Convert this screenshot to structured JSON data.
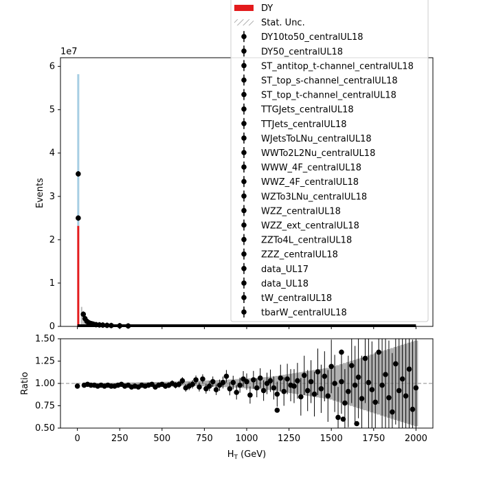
{
  "chart_data": [
    {
      "type": "bar",
      "panel": "main",
      "ylabel": "Events",
      "offset_text": "1e7",
      "ylim": [
        0,
        6.2
      ],
      "xlim": [
        -100,
        2100
      ],
      "ytick_values": [
        0,
        1,
        2,
        3,
        4,
        5,
        6
      ],
      "ytick_labels": [
        "0",
        "1",
        "2",
        "3",
        "4",
        "5",
        "6"
      ],
      "stack_spike_x": 5,
      "stack_dy_top": 2.32,
      "stack_total_top": 5.82,
      "mc_colors": {
        "dy": "#e31a1c",
        "other": "#a6cee3"
      },
      "points": {
        "x": [
          5,
          5,
          35,
          45,
          55,
          65,
          75,
          85,
          95,
          110,
          130,
          150,
          175,
          200,
          250,
          300
        ],
        "y": [
          3.52,
          2.5,
          0.28,
          0.18,
          0.12,
          0.09,
          0.07,
          0.06,
          0.05,
          0.04,
          0.035,
          0.03,
          0.025,
          0.02,
          0.015,
          0.01
        ]
      },
      "legend": {
        "placement": "upper-right",
        "entries": [
          {
            "label": "DY",
            "kind": "patch",
            "color": "#e31a1c"
          },
          {
            "label": "Stat. Unc.",
            "kind": "hatch"
          },
          {
            "label": "DY10to50_centralUL18",
            "kind": "marker"
          },
          {
            "label": "DY50_centralUL18",
            "kind": "marker"
          },
          {
            "label": "ST_antitop_t-channel_centralUL18",
            "kind": "marker"
          },
          {
            "label": "ST_top_s-channel_centralUL18",
            "kind": "marker"
          },
          {
            "label": "ST_top_t-channel_centralUL18",
            "kind": "marker"
          },
          {
            "label": "TTGJets_centralUL18",
            "kind": "marker"
          },
          {
            "label": "TTJets_centralUL18",
            "kind": "marker"
          },
          {
            "label": "WJetsToLNu_centralUL18",
            "kind": "marker"
          },
          {
            "label": "WWTo2L2Nu_centralUL18",
            "kind": "marker"
          },
          {
            "label": "WWW_4F_centralUL18",
            "kind": "marker"
          },
          {
            "label": "WWZ_4F_centralUL18",
            "kind": "marker"
          },
          {
            "label": "WZTo3LNu_centralUL18",
            "kind": "marker"
          },
          {
            "label": "WZZ_centralUL18",
            "kind": "marker"
          },
          {
            "label": "WZZ_ext_centralUL18",
            "kind": "marker"
          },
          {
            "label": "ZZTo4L_centralUL18",
            "kind": "marker"
          },
          {
            "label": "ZZZ_centralUL18",
            "kind": "marker"
          },
          {
            "label": "data_UL17",
            "kind": "marker"
          },
          {
            "label": "data_UL18",
            "kind": "marker"
          },
          {
            "label": "tW_centralUL18",
            "kind": "marker"
          },
          {
            "label": "tbarW_centralUL18",
            "kind": "marker"
          }
        ]
      }
    },
    {
      "type": "scatter",
      "panel": "ratio",
      "xlabel": "H_T (GeV)",
      "ylabel": "Ratio",
      "xlim": [
        -100,
        2100
      ],
      "ylim": [
        0.5,
        1.5
      ],
      "reference_line": 1.0,
      "xtick_values": [
        0,
        250,
        500,
        750,
        1000,
        1250,
        1500,
        1750,
        2000
      ],
      "xtick_labels": [
        "0",
        "250",
        "500",
        "750",
        "1000",
        "1250",
        "1500",
        "1750",
        "2000"
      ],
      "ytick_values": [
        0.5,
        0.75,
        1.0,
        1.25,
        1.5
      ],
      "ytick_labels": [
        "0.50",
        "0.75",
        "1.00",
        "1.25",
        "1.50"
      ],
      "x": [
        0,
        40,
        60,
        80,
        100,
        120,
        140,
        160,
        180,
        200,
        220,
        240,
        260,
        280,
        300,
        320,
        340,
        360,
        380,
        400,
        420,
        440,
        460,
        480,
        500,
        520,
        540,
        560,
        580,
        600,
        620,
        640,
        660,
        680,
        700,
        720,
        740,
        760,
        780,
        800,
        820,
        840,
        860,
        880,
        900,
        920,
        940,
        960,
        980,
        1000,
        1020,
        1040,
        1060,
        1080,
        1100,
        1120,
        1140,
        1160,
        1180,
        1200,
        1220,
        1240,
        1260,
        1280,
        1300,
        1320,
        1340,
        1360,
        1380,
        1400,
        1420,
        1440,
        1460,
        1480,
        1500,
        1520,
        1540,
        1560,
        1580,
        1600,
        1620,
        1640,
        1660,
        1680,
        1700,
        1720,
        1740,
        1760,
        1780,
        1800,
        1820,
        1840,
        1860,
        1880,
        1900,
        1920,
        1940,
        1960,
        1980,
        2000
      ],
      "y": [
        0.97,
        0.98,
        0.99,
        0.98,
        0.98,
        0.97,
        0.98,
        0.97,
        0.98,
        0.97,
        0.97,
        0.98,
        0.99,
        0.97,
        0.98,
        0.96,
        0.97,
        0.96,
        0.98,
        0.97,
        0.98,
        0.99,
        0.96,
        0.98,
        0.99,
        0.97,
        0.98,
        1.0,
        0.98,
        0.99,
        1.03,
        0.95,
        0.97,
        0.99,
        1.04,
        0.96,
        1.05,
        0.94,
        0.97,
        1.02,
        0.93,
        0.98,
        1.01,
        1.08,
        0.94,
        1.01,
        0.9,
        0.98,
        1.05,
        1.02,
        0.87,
        1.04,
        0.95,
        1.06,
        0.92,
        1.0,
        1.03,
        0.95,
        0.88,
        1.06,
        0.91,
        1.05,
        0.98,
        0.97,
        1.03,
        0.85,
        1.09,
        0.92,
        1.02,
        0.88,
        1.13,
        0.94,
        1.08,
        0.86,
        1.19,
        1.0,
        0.62,
        1.02,
        0.78,
        0.91,
        1.2,
        0.98,
        1.07,
        0.83,
        1.28,
        1.01,
        0.93,
        0.79,
        1.35,
        0.98,
        1.1,
        0.84,
        0.68,
        1.22,
        0.92,
        1.05,
        0.86,
        1.16,
        0.71,
        0.95
      ],
      "err": [
        0.01,
        0.01,
        0.01,
        0.01,
        0.01,
        0.01,
        0.01,
        0.01,
        0.01,
        0.01,
        0.012,
        0.012,
        0.014,
        0.015,
        0.016,
        0.017,
        0.018,
        0.02,
        0.021,
        0.022,
        0.023,
        0.025,
        0.026,
        0.027,
        0.028,
        0.03,
        0.032,
        0.034,
        0.036,
        0.038,
        0.04,
        0.042,
        0.044,
        0.046,
        0.048,
        0.05,
        0.052,
        0.054,
        0.056,
        0.058,
        0.06,
        0.063,
        0.066,
        0.07,
        0.073,
        0.076,
        0.08,
        0.084,
        0.088,
        0.092,
        0.096,
        0.1,
        0.105,
        0.11,
        0.115,
        0.12,
        0.125,
        0.13,
        0.14,
        0.15,
        0.16,
        0.17,
        0.18,
        0.19,
        0.2,
        0.21,
        0.22,
        0.23,
        0.24,
        0.25,
        0.26,
        0.27,
        0.28,
        0.29,
        0.3,
        0.32,
        0.34,
        0.36,
        0.38,
        0.4,
        0.42,
        0.44,
        0.46,
        0.48,
        0.5,
        0.52,
        0.54,
        0.56,
        0.58,
        0.6,
        0.62,
        0.64,
        0.66,
        0.68,
        0.7,
        0.72,
        0.74,
        0.76,
        0.78,
        0.8
      ],
      "extra_points": {
        "x": [
          1180,
          1570,
          1560,
          1650
        ],
        "y": [
          0.7,
          0.6,
          1.35,
          0.55
        ]
      }
    }
  ]
}
